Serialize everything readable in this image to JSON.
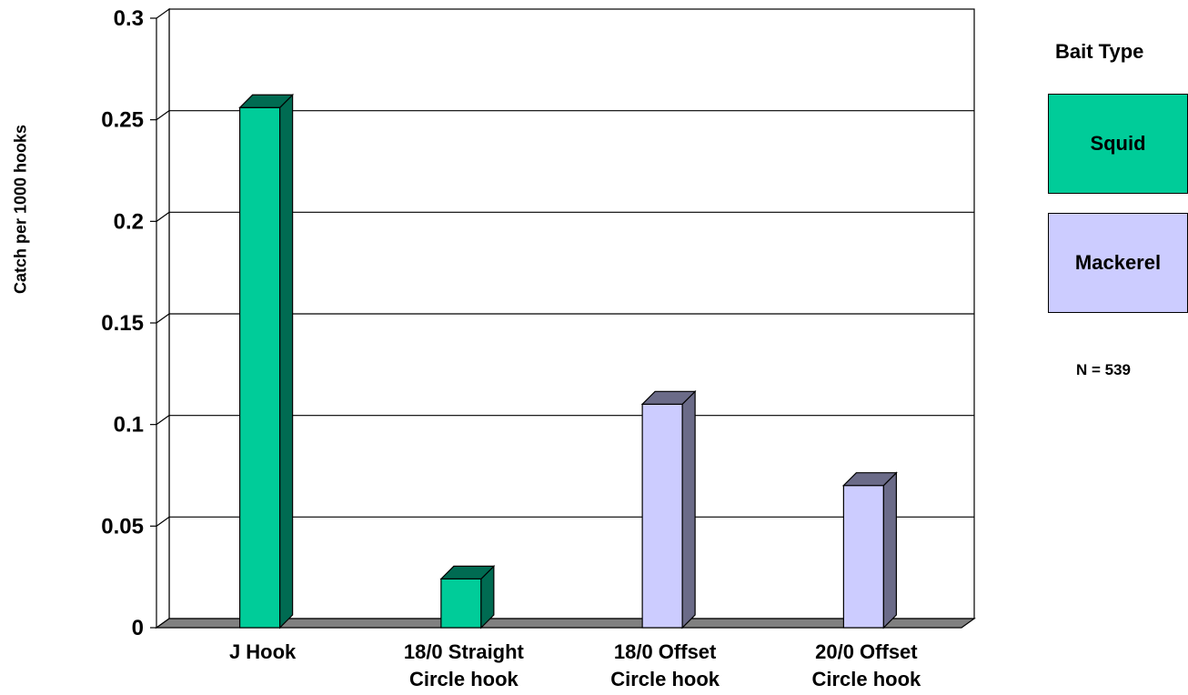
{
  "chart_data": {
    "type": "bar",
    "categories": [
      [
        "J Hook"
      ],
      [
        "18/0 Straight",
        "Circle hook"
      ],
      [
        "18/0 Offset",
        "Circle hook"
      ],
      [
        "20/0 Offset",
        "Circle hook"
      ]
    ],
    "values": [
      0.256,
      0.024,
      0.11,
      0.07
    ],
    "bait": [
      "Squid",
      "Squid",
      "Mackerel",
      "Mackerel"
    ],
    "ylabel": "Catch per 1000 hooks",
    "ylim": [
      0,
      0.3
    ],
    "yticks": [
      "0",
      "0.05",
      "0.1",
      "0.15",
      "0.2",
      "0.25",
      "0.3"
    ],
    "grid": true,
    "legend": {
      "title": "Bait Type",
      "placement": "right",
      "entries": [
        {
          "name": "Squid",
          "color": "#00cc99",
          "side_color": "#006b52"
        },
        {
          "name": "Mackerel",
          "color": "#ccccff",
          "side_color": "#6b6b88"
        }
      ]
    },
    "note": "N = 539"
  }
}
